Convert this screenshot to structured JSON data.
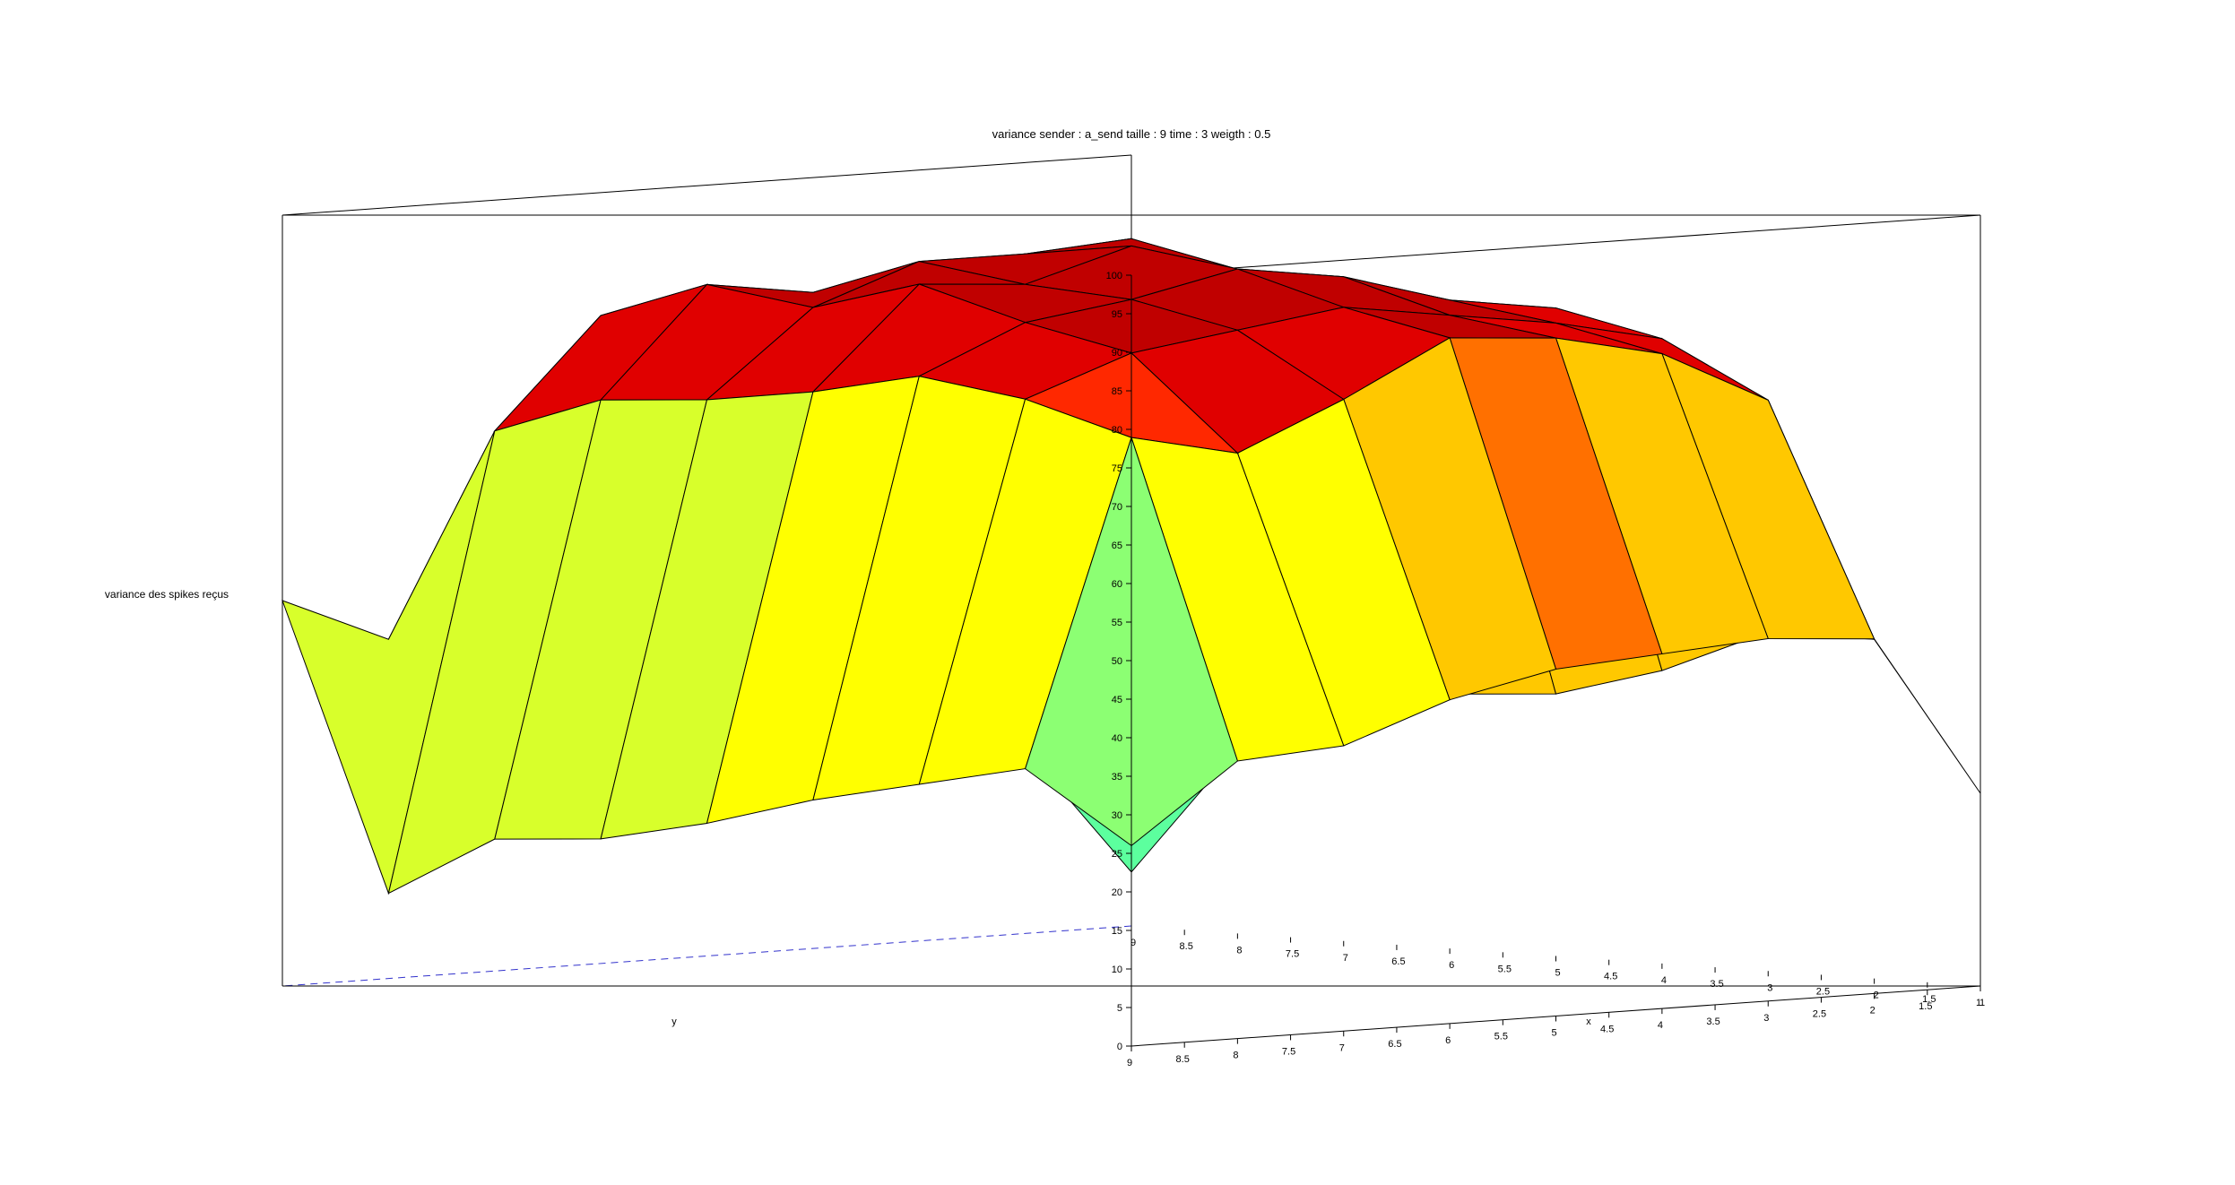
{
  "chart_data": {
    "type": "surface3d",
    "title": "variance sender : a_send taille : 9 time : 3 weigth : 0.5",
    "zlabel": "variance des spikes reçus",
    "xlabel": "x",
    "ylabel": "y",
    "xlim": [
      1,
      9
    ],
    "ylim": [
      1,
      9
    ],
    "zlim": [
      0,
      100
    ],
    "x": [
      1,
      2,
      3,
      4,
      5,
      6,
      7,
      8,
      9
    ],
    "y": [
      1,
      2,
      3,
      4,
      5,
      6,
      7,
      8,
      9
    ],
    "z_ticks": [
      "0",
      "5",
      "10",
      "15",
      "20",
      "25",
      "30",
      "35",
      "40",
      "45",
      "50",
      "55",
      "60",
      "65",
      "70",
      "75",
      "80",
      "85",
      "90",
      "95",
      "100"
    ],
    "y_ticks": [
      "1",
      "1.5",
      "2",
      "2.5",
      "3",
      "3.5",
      "4",
      "4.5",
      "5",
      "5.5",
      "6",
      "6.5",
      "7",
      "7.5",
      "8",
      "8.5",
      "9"
    ],
    "x_ticks": [
      "1",
      "1.5",
      "2",
      "2.5",
      "3",
      "3.5",
      "4",
      "4.5",
      "5",
      "5.5",
      "6",
      "6.5",
      "7",
      "7.5",
      "8",
      "8.5",
      "9"
    ],
    "z": [
      [
        25,
        46,
        47,
        46,
        45,
        42,
        37,
        36,
        26
      ],
      [
        44,
        76,
        83,
        86,
        87,
        80,
        74,
        77,
        35
      ],
      [
        44,
        83,
        86,
        88,
        90,
        88,
        86,
        81,
        32
      ],
      [
        38,
        86,
        88,
        92,
        94,
        91,
        89,
        83,
        29
      ],
      [
        34,
        85,
        90,
        92,
        96,
        92,
        93,
        80,
        25
      ],
      [
        33,
        83,
        89,
        95,
        94,
        94,
        89,
        78,
        22
      ],
      [
        27,
        82,
        87,
        92,
        91,
        89,
        91,
        77,
        21
      ],
      [
        24,
        77,
        80,
        85,
        85,
        85,
        86,
        72,
        13
      ],
      [
        7,
        24,
        27,
        33,
        34,
        36,
        42,
        44,
        50
      ]
    ],
    "colormap": [
      "#0073ff",
      "#1affe3",
      "#5cff9e",
      "#8cff73",
      "#d8ff2b",
      "#ffff00",
      "#ffc800",
      "#ff7000",
      "#ff2800",
      "#e00000",
      "#c00000"
    ],
    "grid": false
  }
}
